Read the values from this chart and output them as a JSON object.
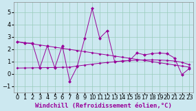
{
  "xlabel": "Windchill (Refroidissement éolien,°C)",
  "background_color": "#cce8f0",
  "grid_color": "#99ccbb",
  "line_color": "#990099",
  "xlim": [
    -0.5,
    23.5
  ],
  "ylim": [
    -1.5,
    5.8
  ],
  "xticks": [
    0,
    1,
    2,
    3,
    4,
    5,
    6,
    7,
    8,
    9,
    10,
    11,
    12,
    13,
    14,
    15,
    16,
    17,
    18,
    19,
    20,
    21,
    22,
    23
  ],
  "yticks": [
    -1,
    0,
    1,
    2,
    3,
    4,
    5
  ],
  "x": [
    0,
    1,
    2,
    3,
    4,
    5,
    6,
    7,
    8,
    9,
    10,
    11,
    12,
    13,
    14,
    15,
    16,
    17,
    18,
    19,
    20,
    21,
    22,
    23
  ],
  "y_jagged": [
    2.6,
    2.5,
    2.5,
    0.5,
    2.3,
    0.5,
    2.3,
    -0.6,
    0.6,
    2.9,
    5.3,
    2.9,
    3.5,
    1.0,
    1.05,
    1.1,
    1.7,
    1.55,
    1.65,
    1.7,
    1.65,
    1.3,
    -0.05,
    0.45
  ],
  "y_upper": [
    2.62,
    2.53,
    2.44,
    2.35,
    2.26,
    2.17,
    2.08,
    1.99,
    1.9,
    1.81,
    1.72,
    1.63,
    1.54,
    1.45,
    1.36,
    1.27,
    1.18,
    1.09,
    1.0,
    0.91,
    0.82,
    0.73,
    0.64,
    0.55
  ],
  "y_lower": [
    0.48,
    0.49,
    0.5,
    0.51,
    0.52,
    0.53,
    0.54,
    0.55,
    0.65,
    0.72,
    0.8,
    0.87,
    0.93,
    0.99,
    1.04,
    1.08,
    1.12,
    1.14,
    1.14,
    1.13,
    1.1,
    1.05,
    0.95,
    0.75
  ],
  "marker_size": 2.5,
  "font_size": 6,
  "xlabel_fontsize": 6.5
}
